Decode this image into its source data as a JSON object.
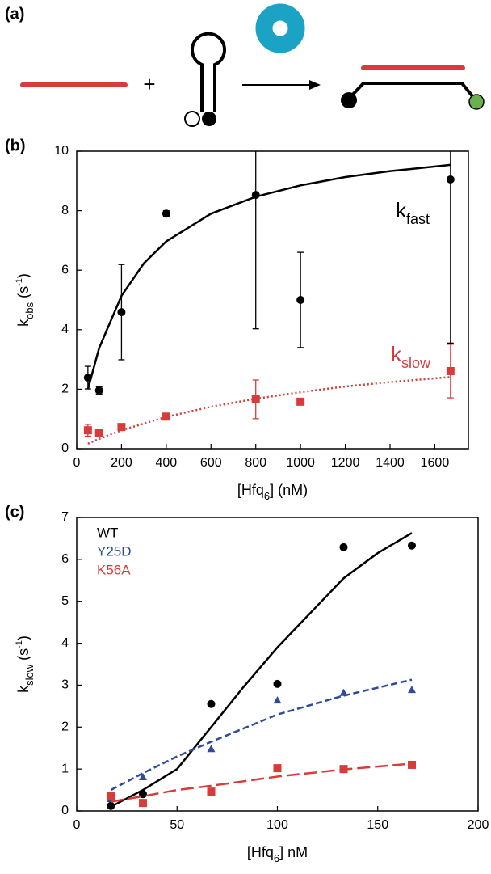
{
  "panel_a": {
    "label": "(a)",
    "plus": "+"
  },
  "chart_data": [
    {
      "type": "scatter",
      "panel_label": "(b)",
      "xlabel": {
        "parts": [
          {
            "text": "[Hfq"
          },
          {
            "text": "6",
            "sub": true
          },
          {
            "text": "] (nM)"
          }
        ]
      },
      "ylabel": {
        "parts": [
          {
            "text": "k"
          },
          {
            "text": "obs",
            "sub": true
          },
          {
            "text": " (s"
          },
          {
            "text": "-1",
            "sup": true
          },
          {
            "text": ")"
          }
        ]
      },
      "xlim": [
        0,
        1750
      ],
      "xticks": [
        0,
        200,
        400,
        600,
        800,
        1000,
        1200,
        1400,
        1600
      ],
      "ylim": [
        0,
        10
      ],
      "yticks": [
        0,
        2,
        4,
        6,
        8,
        10
      ],
      "annotations": [
        {
          "parts": [
            {
              "text": "k"
            },
            {
              "text": "fast",
              "sub": true
            }
          ],
          "color": "#000000"
        },
        {
          "parts": [
            {
              "text": "k"
            },
            {
              "text": "slow",
              "sub": true
            }
          ],
          "color": "#d93a3a"
        }
      ],
      "series": [
        {
          "mode": "markers",
          "marker": "circle",
          "color": "#000000",
          "x": [
            50,
            100,
            200,
            400,
            800,
            1000,
            1670
          ],
          "values": [
            2.39,
            1.96,
            4.59,
            7.9,
            8.53,
            5.0,
            9.05
          ],
          "errors": [
            0.38,
            0.12,
            1.6,
            0.1,
            4.5,
            1.6,
            5.5
          ]
        },
        {
          "mode": "markers",
          "marker": "square",
          "color": "#d93a3a",
          "x": [
            50,
            100,
            200,
            400,
            800,
            1000,
            1670
          ],
          "values": [
            0.62,
            0.52,
            0.73,
            1.08,
            1.66,
            1.58,
            2.61
          ],
          "errors": [
            0.2,
            0.1,
            0.05,
            0.05,
            0.65,
            0,
            0.9
          ]
        },
        {
          "mode": "line",
          "dash": "solid",
          "color": "#000000",
          "x": [
            50,
            100,
            200,
            300,
            400,
            600,
            800,
            1000,
            1200,
            1400,
            1670
          ],
          "values": [
            2.0,
            3.38,
            5.14,
            6.23,
            6.97,
            7.9,
            8.47,
            8.85,
            9.13,
            9.33,
            9.54
          ]
        },
        {
          "mode": "line",
          "dash": "dotted",
          "color": "#d93a3a",
          "x": [
            50,
            100,
            200,
            400,
            600,
            800,
            1000,
            1200,
            1400,
            1670
          ],
          "values": [
            0.17,
            0.33,
            0.62,
            1.07,
            1.41,
            1.68,
            1.9,
            2.09,
            2.24,
            2.41
          ]
        }
      ]
    },
    {
      "type": "scatter",
      "panel_label": "(c)",
      "xlabel": {
        "parts": [
          {
            "text": "[Hfq"
          },
          {
            "text": "6",
            "sub": true
          },
          {
            "text": "] nM"
          }
        ]
      },
      "ylabel": {
        "parts": [
          {
            "text": "k"
          },
          {
            "text": "slow",
            "sub": true
          },
          {
            "text": " (s"
          },
          {
            "text": "-1",
            "sup": true
          },
          {
            "text": ")"
          }
        ]
      },
      "xlim": [
        0,
        200
      ],
      "xticks": [
        0,
        50,
        100,
        150,
        200
      ],
      "ylim": [
        0,
        7
      ],
      "yticks": [
        0,
        1,
        2,
        3,
        4,
        5,
        6,
        7
      ],
      "series": [
        {
          "name": "WT",
          "mode": "markers",
          "marker": "circle",
          "color": "#000000",
          "x": [
            17,
            33,
            67,
            100,
            133,
            167
          ],
          "values": [
            0.12,
            0.4,
            2.55,
            3.03,
            6.29,
            6.33
          ]
        },
        {
          "name": "Y25D",
          "mode": "markers",
          "marker": "triangle",
          "color": "#2e4a9a",
          "x": [
            17,
            33,
            67,
            100,
            133,
            167
          ],
          "values": [
            0.29,
            0.81,
            1.48,
            2.64,
            2.82,
            2.89
          ]
        },
        {
          "name": "K56A",
          "mode": "markers",
          "marker": "square",
          "color": "#d93a3a",
          "x": [
            17,
            33,
            67,
            100,
            133,
            167
          ],
          "values": [
            0.35,
            0.19,
            0.46,
            1.02,
            1.0,
            1.1
          ]
        },
        {
          "mode": "line",
          "dash": "solid",
          "color": "#000000",
          "x": [
            17,
            25,
            33,
            50,
            67,
            83,
            100,
            117,
            133,
            150,
            167
          ],
          "values": [
            0.1,
            0.3,
            0.5,
            1.0,
            2.0,
            2.95,
            3.9,
            4.75,
            5.55,
            6.15,
            6.63
          ]
        },
        {
          "mode": "line",
          "dash": "dashed",
          "color": "#2e4a9a",
          "x": [
            17,
            33,
            50,
            67,
            100,
            133,
            167
          ],
          "values": [
            0.5,
            0.9,
            1.3,
            1.65,
            2.3,
            2.75,
            3.13
          ]
        },
        {
          "mode": "line",
          "dash": "longdash",
          "color": "#d93a3a",
          "x": [
            17,
            33,
            50,
            67,
            100,
            133,
            167
          ],
          "values": [
            0.22,
            0.35,
            0.5,
            0.6,
            0.82,
            0.99,
            1.13
          ]
        }
      ]
    }
  ]
}
